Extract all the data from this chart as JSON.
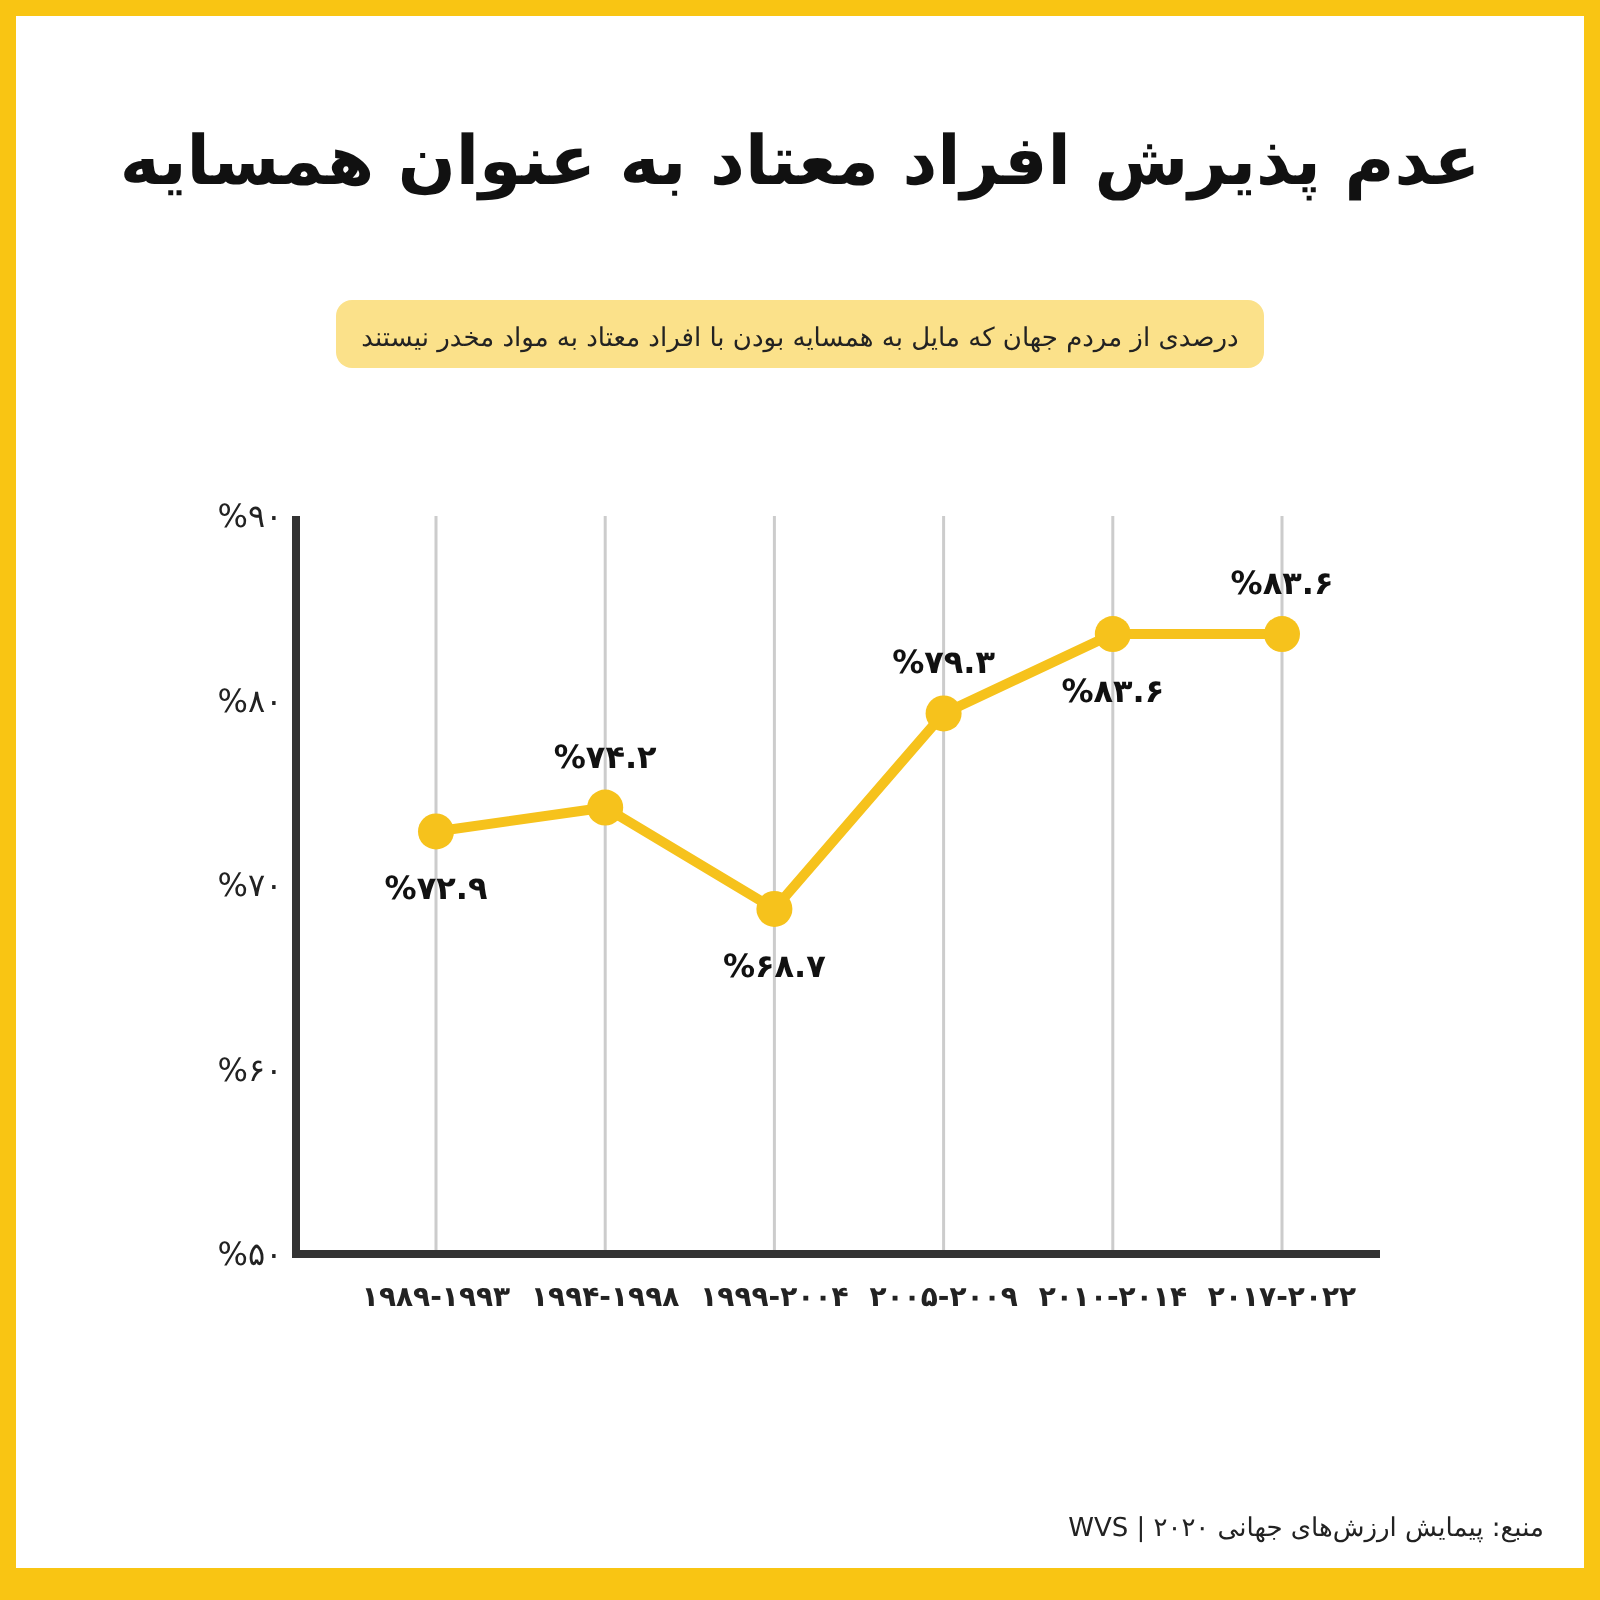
{
  "chart_data": {
    "type": "line",
    "title": "عدم پذیرش افراد معتاد به عنوان همسایه",
    "subtitle": "درصدی از مردم جهان که مایل به همسایه بودن با افراد معتاد به مواد مخدر نیستند",
    "categories": [
      "۱۹۸۹-۱۹۹۳",
      "۱۹۹۴-۱۹۹۸",
      "۱۹۹۹-۲۰۰۴",
      "۲۰۰۵-۲۰۰۹",
      "۲۰۱۰-۲۰۱۴",
      "۲۰۱۷-۲۰۲۲"
    ],
    "series": [
      {
        "color": "#f6c21c",
        "values": [
          72.9,
          74.2,
          68.7,
          79.3,
          83.6,
          83.6
        ],
        "value_labels": [
          "%۷۲.۹",
          "%۷۴.۲",
          "%۶۸.۷",
          "%۷۹.۳",
          "%۸۳.۶",
          "%۸۳.۶"
        ]
      }
    ],
    "ylim": [
      50,
      90
    ],
    "yticks": [
      {
        "value": 50,
        "label": "%۵۰"
      },
      {
        "value": 60,
        "label": "%۶۰"
      },
      {
        "value": 70,
        "label": "%۷۰"
      },
      {
        "value": 80,
        "label": "%۸۰"
      },
      {
        "value": 90,
        "label": "%۹۰"
      }
    ],
    "grid": "x",
    "marker": "circle",
    "line_style": "solid",
    "annotations": [
      "منبع: پیمایش ارزش‌های جهانی WVS | ۲۰۲۰"
    ]
  }
}
